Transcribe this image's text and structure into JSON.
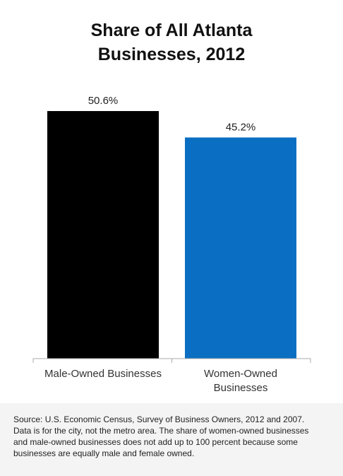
{
  "chart_data": {
    "type": "bar",
    "title_lines": [
      "Share of All Atlanta",
      "Businesses, 2012"
    ],
    "categories": [
      [
        "Male-Owned Businesses"
      ],
      [
        "Women-Owned",
        "Businesses"
      ]
    ],
    "values": [
      50.6,
      45.2
    ],
    "value_labels": [
      "50.6%",
      "45.2%"
    ],
    "colors": [
      "#000000",
      "#0a6fc2"
    ],
    "ylim": [
      0,
      60
    ],
    "grid": false,
    "legend": "none"
  },
  "source": "Source: U.S. Economic Census, Survey of Business Owners, 2012 and 2007. Data is for the city, not the metro area. The share of women-owned businesses and male-owned businesses does not add up to 100 percent because some businesses are equally male and female owned."
}
